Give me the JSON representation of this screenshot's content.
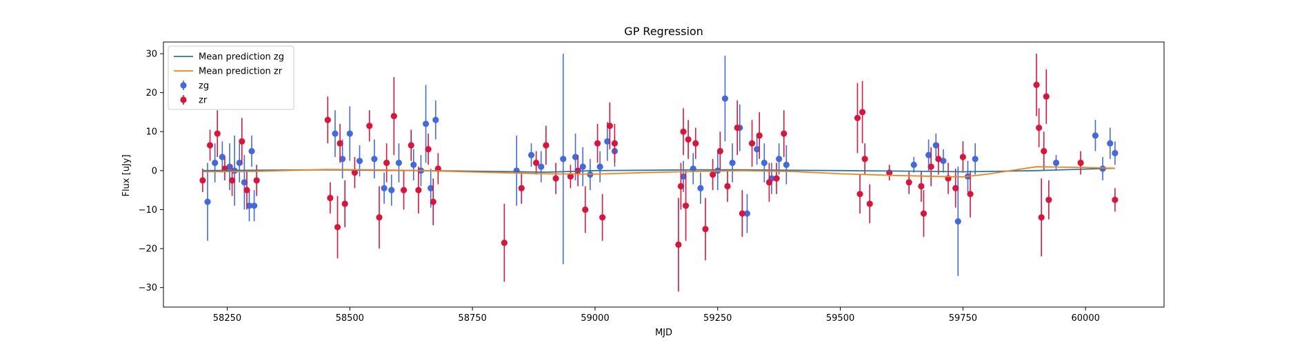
{
  "chart_data": {
    "type": "scatter",
    "title": "GP Regression",
    "xlabel": "MJD",
    "ylabel": "Flux [uJy]",
    "xlim": [
      58120,
      60160
    ],
    "ylim": [
      -35,
      33
    ],
    "xticks": [
      58250,
      58500,
      58750,
      59000,
      59250,
      59500,
      59750,
      60000
    ],
    "yticks": [
      -30,
      -20,
      -10,
      0,
      10,
      20,
      30
    ],
    "grid": false,
    "legend_position": "top-left",
    "colors": {
      "mean_zg": "#1f77b4",
      "mean_zr": "#ff7f0e",
      "zg": "#4169e1",
      "zr": "#dc143c"
    },
    "legend": [
      {
        "label": "Mean prediction zg",
        "kind": "line",
        "color": "#1f77b4"
      },
      {
        "label": "Mean prediction zr",
        "kind": "line",
        "color": "#ff7f0e"
      },
      {
        "label": "zg",
        "kind": "errorbar",
        "color": "#4169e1"
      },
      {
        "label": "zr",
        "kind": "errorbar",
        "color": "#dc143c"
      }
    ],
    "lines": [
      {
        "name": "Mean prediction zg",
        "color": "#1f77b4",
        "x": [
          58200,
          58300,
          58450,
          58550,
          58650,
          58800,
          58900,
          59000,
          59100,
          59200,
          59300,
          59400,
          59500,
          59600,
          59700,
          59750,
          59800,
          59900,
          60000,
          60060
        ],
        "y": [
          0.0,
          0.1,
          0.2,
          0.1,
          0.0,
          -0.2,
          -0.4,
          0.0,
          0.1,
          0.2,
          0.2,
          0.1,
          0.0,
          -0.1,
          -0.2,
          -0.3,
          -0.2,
          0.0,
          0.4,
          0.6
        ]
      },
      {
        "name": "Mean prediction zr",
        "color": "#ff7f0e",
        "x": [
          58200,
          58300,
          58450,
          58550,
          58650,
          58800,
          58900,
          59000,
          59100,
          59200,
          59300,
          59400,
          59500,
          59600,
          59700,
          59750,
          59800,
          59900,
          60000,
          60060
        ],
        "y": [
          -0.3,
          -0.2,
          0.3,
          0.2,
          0.0,
          -0.5,
          -0.8,
          -0.9,
          -0.5,
          -0.2,
          0.0,
          -0.2,
          -0.8,
          -1.2,
          -1.5,
          -1.6,
          -0.9,
          1.0,
          0.8,
          0.6
        ]
      }
    ],
    "series": [
      {
        "name": "zg",
        "color": "#4169e1",
        "x": [
          58210,
          58225,
          58240,
          58255,
          58265,
          58275,
          58285,
          58295,
          58300,
          58305,
          58470,
          58485,
          58500,
          58520,
          58550,
          58570,
          58585,
          58600,
          58630,
          58645,
          58655,
          58665,
          58675,
          58840,
          58870,
          58890,
          58935,
          58960,
          58975,
          58990,
          59010,
          59025,
          59040,
          59180,
          59200,
          59215,
          59250,
          59265,
          59280,
          59295,
          59310,
          59330,
          59345,
          59360,
          59375,
          59390,
          59650,
          59680,
          59695,
          59710,
          59740,
          59760,
          59775,
          59940,
          60020,
          60035,
          60050,
          60060
        ],
        "y": [
          -8.0,
          2.0,
          3.5,
          1.0,
          0.0,
          2.0,
          -3.0,
          -9.0,
          5.0,
          -9.0,
          9.5,
          3.0,
          9.5,
          2.5,
          3.0,
          -4.5,
          -5.0,
          2.0,
          1.5,
          0.0,
          12.0,
          -4.5,
          13.0,
          0.0,
          4.0,
          1.0,
          3.0,
          3.5,
          1.0,
          -1.0,
          1.0,
          7.5,
          5.0,
          -1.5,
          0.5,
          -4.5,
          0.0,
          18.5,
          2.0,
          11.0,
          -11.0,
          5.5,
          2.0,
          -2.0,
          3.0,
          1.5,
          1.5,
          4.0,
          6.5,
          2.5,
          -13.0,
          -1.5,
          3.0,
          2.0,
          9.0,
          0.5,
          7.0,
          4.5
        ],
        "err": [
          10,
          5,
          4,
          6,
          9,
          5,
          7,
          4,
          4,
          4,
          6,
          5,
          7,
          4,
          5,
          4,
          4,
          5,
          4,
          4,
          10,
          5,
          5,
          9,
          3,
          4,
          27,
          6,
          5,
          4,
          4,
          5,
          4,
          4,
          4,
          4,
          5,
          11,
          5,
          6,
          5,
          4,
          5,
          4,
          4,
          5,
          2,
          4,
          3,
          3,
          14,
          4,
          4,
          2,
          4,
          3,
          4,
          3
        ]
      },
      {
        "name": "zr",
        "color": "#dc143c",
        "x": [
          58200,
          58215,
          58230,
          58245,
          58260,
          58280,
          58290,
          58310,
          58455,
          58460,
          58475,
          58480,
          58490,
          58510,
          58540,
          58560,
          58575,
          58590,
          58610,
          58625,
          58640,
          58660,
          58670,
          58680,
          58815,
          58850,
          58880,
          58900,
          58920,
          58950,
          58965,
          58980,
          59005,
          59015,
          59030,
          59040,
          59170,
          59175,
          59180,
          59185,
          59190,
          59205,
          59225,
          59240,
          59255,
          59270,
          59290,
          59300,
          59320,
          59335,
          59355,
          59370,
          59385,
          59535,
          59540,
          59545,
          59550,
          59560,
          59600,
          59640,
          59665,
          59670,
          59685,
          59700,
          59720,
          59735,
          59750,
          59765,
          59900,
          59905,
          59910,
          59915,
          59920,
          59925,
          59990,
          60060
        ],
        "y": [
          -2.5,
          6.5,
          9.5,
          0.5,
          -2.5,
          7.5,
          -5.0,
          -2.5,
          13.0,
          -7.0,
          -14.5,
          7.0,
          -8.5,
          -0.5,
          11.5,
          -12.0,
          2.0,
          14.0,
          -5.0,
          6.5,
          -5.0,
          5.5,
          -8.0,
          0.5,
          -18.5,
          -4.5,
          2.0,
          6.5,
          -2.0,
          -1.5,
          0.0,
          -10.0,
          7.0,
          -12.0,
          11.5,
          7.0,
          -19.0,
          -4.0,
          10.0,
          -9.0,
          8.0,
          7.0,
          -15.0,
          -1.0,
          5.0,
          -4.0,
          11.0,
          -11.0,
          7.0,
          9.0,
          -3.0,
          -2.0,
          9.5,
          13.5,
          -6.0,
          15.0,
          3.0,
          -8.5,
          -0.5,
          -3.0,
          -4.0,
          -11.0,
          1.0,
          3.0,
          -2.0,
          -4.5,
          3.5,
          -6.0,
          22.0,
          11.0,
          -12.0,
          5.0,
          19.0,
          -7.5,
          2.0,
          -7.5
        ],
        "err": [
          3,
          4,
          6,
          3,
          4,
          6,
          5,
          4,
          6,
          4,
          8,
          5,
          6,
          4,
          4,
          8,
          5,
          10,
          5,
          4,
          6,
          4,
          6,
          4,
          10,
          4,
          3,
          5,
          4,
          3,
          4,
          6,
          5,
          6,
          6,
          5,
          12,
          6,
          6,
          9,
          5,
          4,
          8,
          4,
          5,
          4,
          7,
          6,
          6,
          6,
          5,
          4,
          6,
          9,
          5,
          8,
          4,
          5,
          2,
          3,
          4,
          6,
          5,
          4,
          4,
          5,
          4,
          6,
          8,
          5,
          10,
          5,
          7,
          5,
          3,
          3
        ]
      }
    ]
  }
}
